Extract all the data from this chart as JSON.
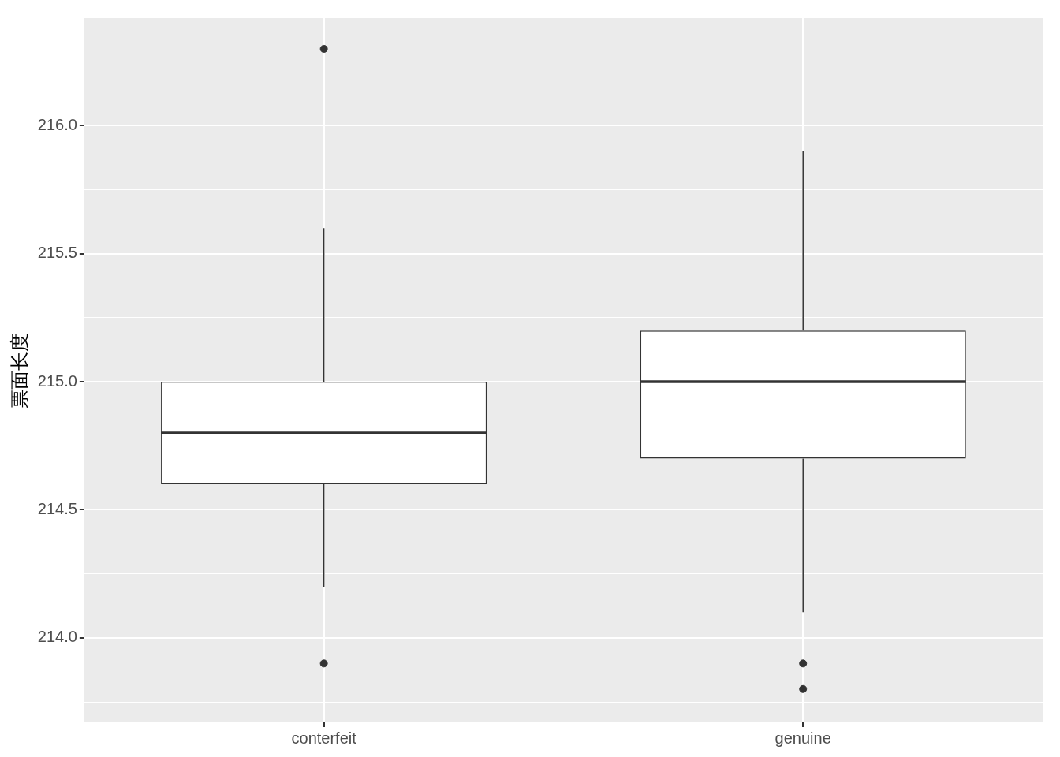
{
  "chart_data": {
    "type": "box",
    "ylabel": "票面长度",
    "categories": [
      "conterfeit",
      "genuine"
    ],
    "color": "#333333",
    "boxes": [
      {
        "low": 214.2,
        "q1": 214.6,
        "median": 214.8,
        "q3": 215.0,
        "high": 215.6,
        "outliers": [
          216.3,
          213.9
        ]
      },
      {
        "low": 214.1,
        "q1": 214.7,
        "median": 215.0,
        "q3": 215.2,
        "high": 215.9,
        "outliers": [
          213.9,
          213.8
        ]
      }
    ],
    "ylim": [
      213.67,
      216.42
    ],
    "yticks": [
      {
        "value": 213.75,
        "label": null
      },
      {
        "value": 214,
        "label": "214.0"
      },
      {
        "value": 214.25,
        "label": null
      },
      {
        "value": 214.5,
        "label": "214.5"
      },
      {
        "value": 214.75,
        "label": null
      },
      {
        "value": 215,
        "label": "215.0"
      },
      {
        "value": 215.25,
        "label": null
      },
      {
        "value": 215.5,
        "label": "215.5"
      },
      {
        "value": 215.75,
        "label": null
      },
      {
        "value": 216,
        "label": "216.0"
      },
      {
        "value": 216.25,
        "label": null
      }
    ],
    "grid": true,
    "legend": false
  }
}
